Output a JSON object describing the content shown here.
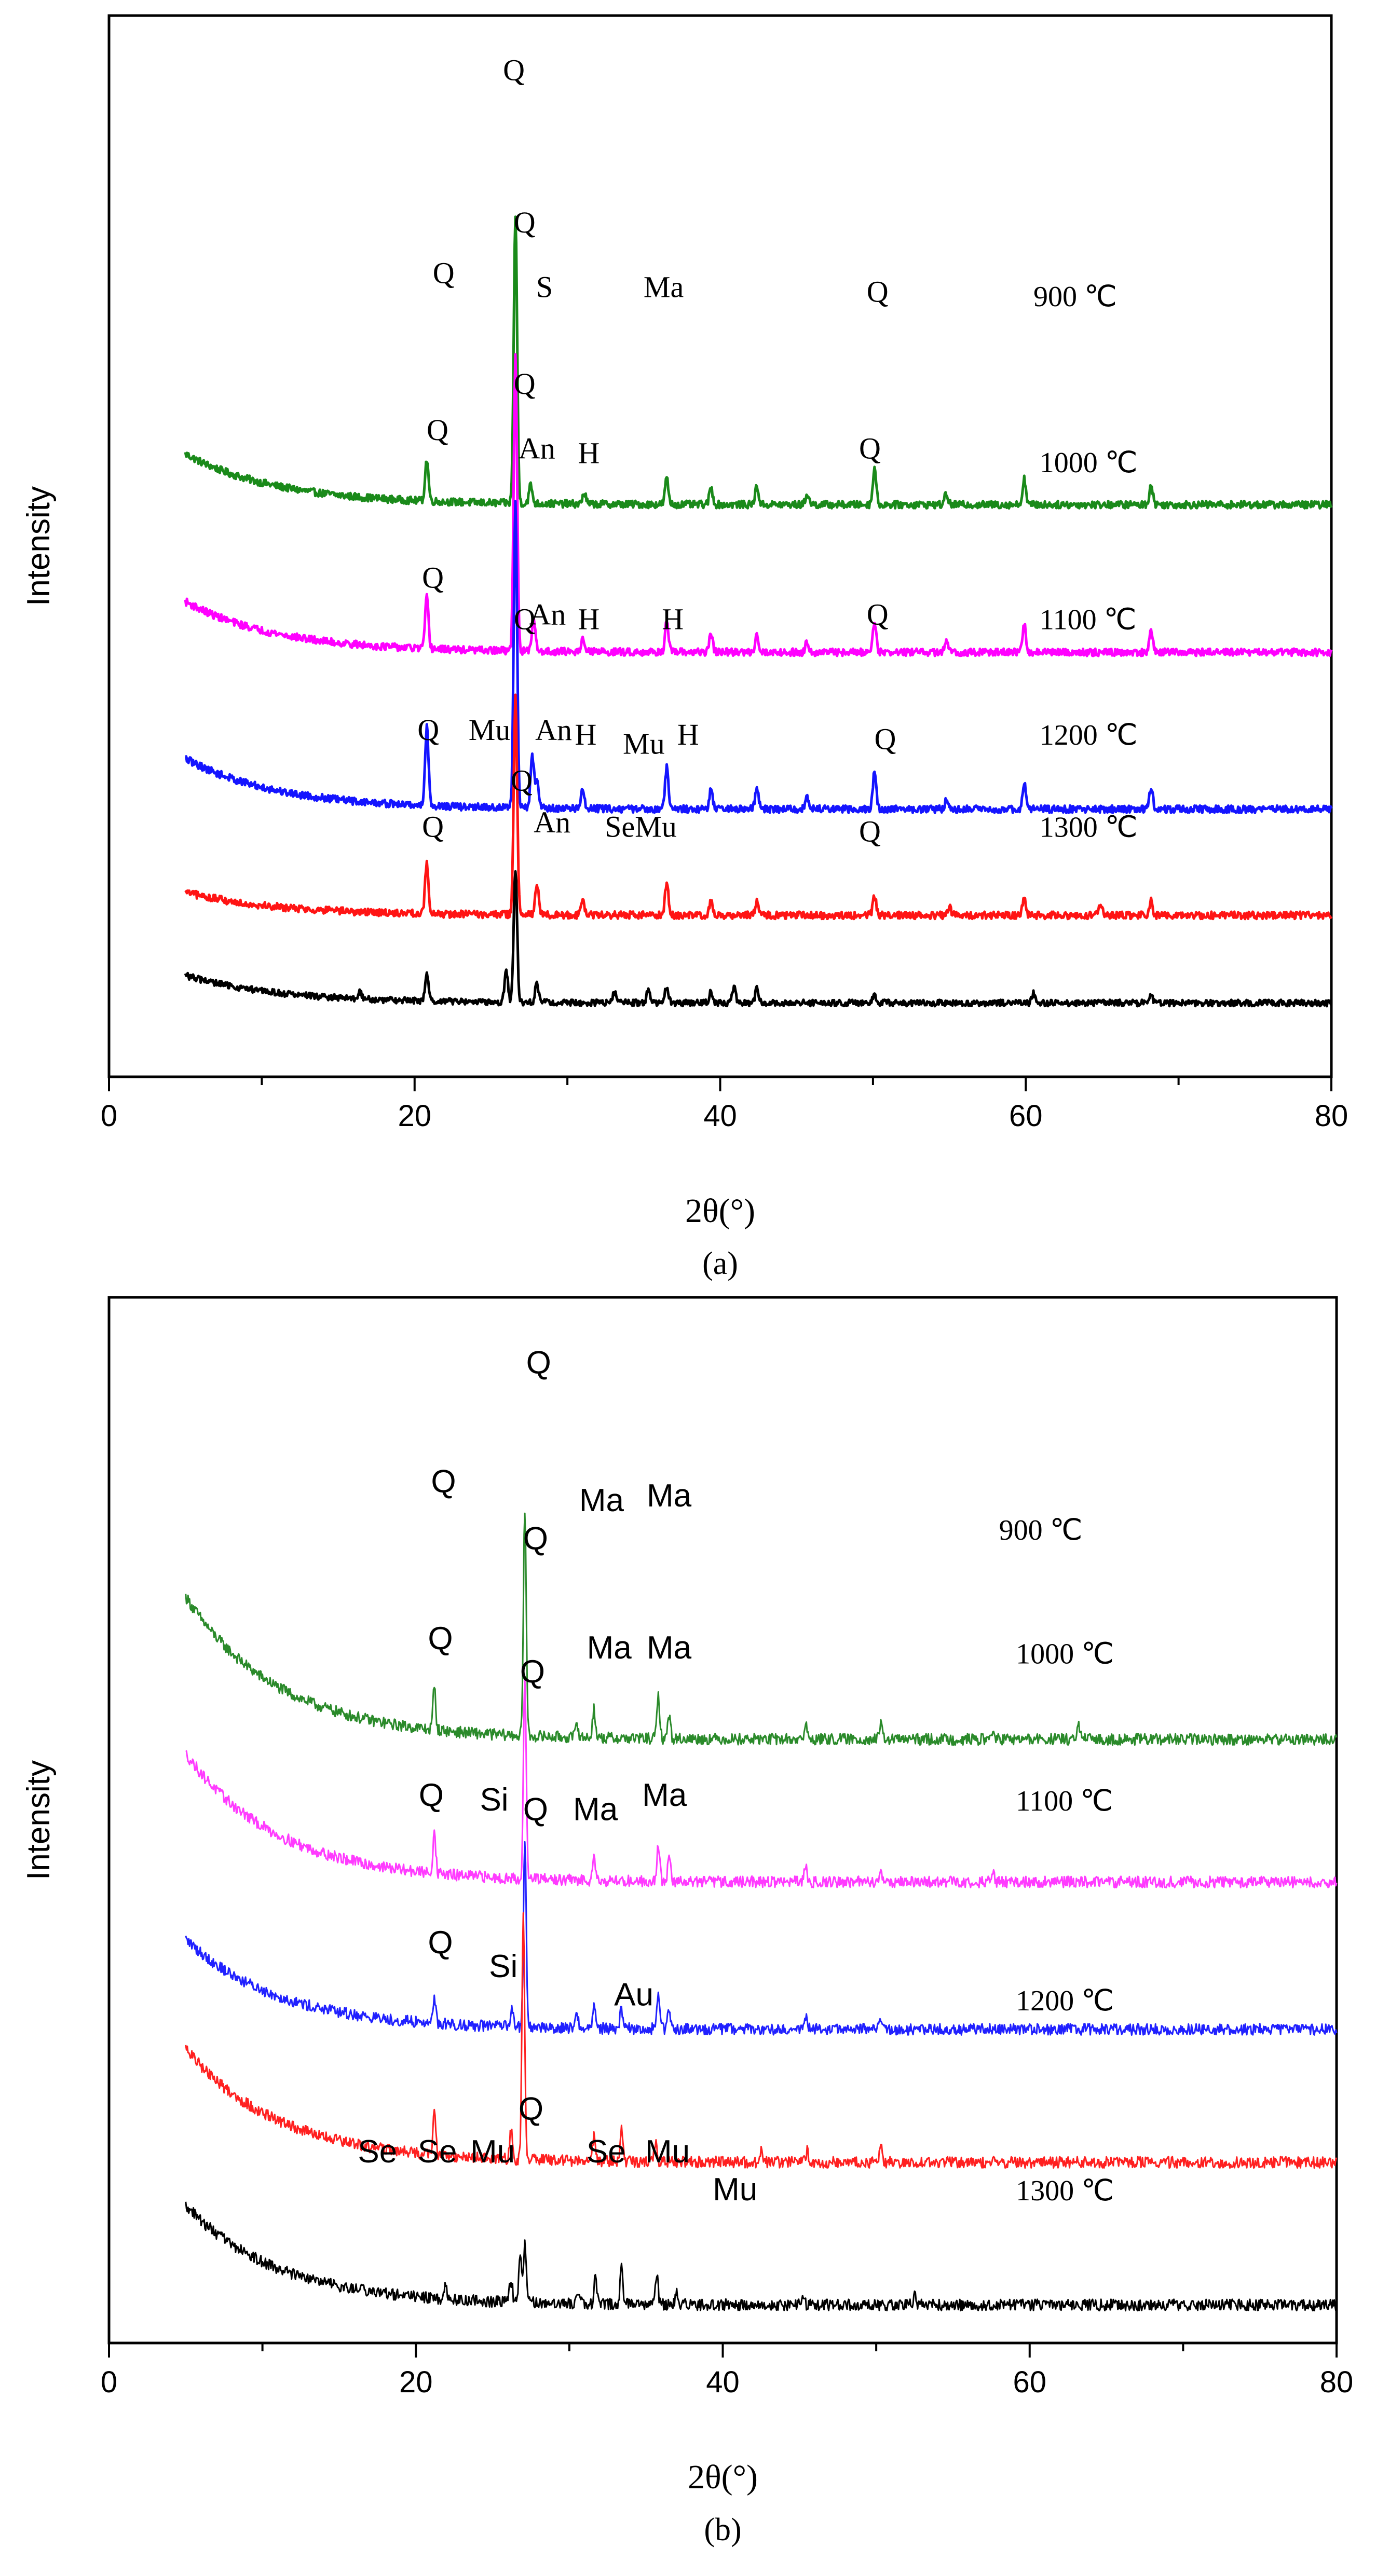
{
  "chart_data": [
    {
      "id": "a",
      "type": "line",
      "panel_label": "(a)",
      "xlabel": "2θ(°)",
      "ylabel": "Intensity",
      "xlim": [
        0,
        80
      ],
      "x_ticks": [
        "0",
        "20",
        "40",
        "60",
        "80"
      ],
      "series": [
        {
          "name": "900 ℃",
          "label": "900 ℃",
          "color": "#1a8a1a",
          "baseline": 6.2,
          "background": 0.55,
          "noise": 0.04,
          "peaks": [
            [
              20.8,
              0.45
            ],
            [
              26.6,
              3.1
            ],
            [
              27.6,
              0.2
            ],
            [
              31.1,
              0.12
            ],
            [
              36.5,
              0.28
            ],
            [
              39.4,
              0.18
            ],
            [
              42.4,
              0.2
            ],
            [
              45.7,
              0.12
            ],
            [
              50.1,
              0.4
            ],
            [
              54.8,
              0.12
            ],
            [
              59.9,
              0.28
            ],
            [
              68.2,
              0.22
            ]
          ],
          "labels": [
            {
              "text": "Q",
              "x": 21.9,
              "y": 8.6
            },
            {
              "text": "Q",
              "x": 26.5,
              "y": 10.8
            },
            {
              "text": "S",
              "x": 28.5,
              "y": 8.45
            },
            {
              "text": "Ma",
              "x": 36.3,
              "y": 8.45
            },
            {
              "text": "Q",
              "x": 50.3,
              "y": 8.4
            },
            {
              "text": "900 ℃",
              "x": 60.5,
              "y": 8.35
            }
          ]
        },
        {
          "name": "1000 ℃",
          "label": "1000 ℃",
          "color": "#ff00ff",
          "baseline": 4.6,
          "background": 0.55,
          "noise": 0.04,
          "peaks": [
            [
              20.8,
              0.55
            ],
            [
              26.6,
              3.2
            ],
            [
              27.8,
              0.35
            ],
            [
              31.0,
              0.15
            ],
            [
              36.5,
              0.32
            ],
            [
              39.4,
              0.2
            ],
            [
              42.4,
              0.2
            ],
            [
              45.7,
              0.12
            ],
            [
              50.1,
              0.35
            ],
            [
              54.8,
              0.12
            ],
            [
              59.9,
              0.3
            ],
            [
              68.2,
              0.22
            ]
          ],
          "labels": [
            {
              "text": "Q",
              "x": 21.5,
              "y": 6.9
            },
            {
              "text": "Q",
              "x": 27.2,
              "y": 9.15
            },
            {
              "text": "An",
              "x": 28.0,
              "y": 6.7
            },
            {
              "text": "H",
              "x": 31.4,
              "y": 6.65
            },
            {
              "text": "Q",
              "x": 49.8,
              "y": 6.7
            },
            {
              "text": "1000 ℃",
              "x": 60.9,
              "y": 6.55
            }
          ]
        },
        {
          "name": "1100 ℃",
          "label": "1100 ℃",
          "color": "#1414ff",
          "baseline": 2.9,
          "background": 0.55,
          "noise": 0.04,
          "peaks": [
            [
              20.8,
              0.85
            ],
            [
              26.6,
              3.3
            ],
            [
              27.7,
              0.55
            ],
            [
              28.0,
              0.3
            ],
            [
              31.0,
              0.2
            ],
            [
              36.5,
              0.45
            ],
            [
              39.4,
              0.22
            ],
            [
              42.4,
              0.22
            ],
            [
              45.7,
              0.12
            ],
            [
              50.1,
              0.4
            ],
            [
              54.8,
              0.1
            ],
            [
              59.9,
              0.28
            ],
            [
              68.2,
              0.22
            ]
          ],
          "labels": [
            {
              "text": "Q",
              "x": 21.2,
              "y": 5.3
            },
            {
              "text": "Q",
              "x": 27.2,
              "y": 7.4
            },
            {
              "text": "An",
              "x": 28.7,
              "y": 4.9
            },
            {
              "text": "H",
              "x": 31.4,
              "y": 4.85
            },
            {
              "text": "H",
              "x": 36.9,
              "y": 4.85
            },
            {
              "text": "Q",
              "x": 50.3,
              "y": 4.9
            },
            {
              "text": "1100 ℃",
              "x": 60.9,
              "y": 4.85
            }
          ]
        },
        {
          "name": "1200 ℃",
          "label": "1200 ℃",
          "color": "#ff1414",
          "baseline": 1.75,
          "background": 0.25,
          "noise": 0.04,
          "peaks": [
            [
              20.8,
              0.55
            ],
            [
              26.6,
              2.35
            ],
            [
              28.0,
              0.35
            ],
            [
              31.0,
              0.18
            ],
            [
              36.5,
              0.35
            ],
            [
              39.4,
              0.15
            ],
            [
              42.4,
              0.15
            ],
            [
              50.1,
              0.22
            ],
            [
              55.0,
              0.1
            ],
            [
              59.9,
              0.18
            ],
            [
              64.9,
              0.12
            ],
            [
              68.2,
              0.15
            ]
          ],
          "labels": [
            {
              "text": "Q",
              "x": 20.9,
              "y": 3.65
            },
            {
              "text": "Mu",
              "x": 24.9,
              "y": 3.65
            },
            {
              "text": "Q",
              "x": 27.2,
              "y": 4.85
            },
            {
              "text": "An",
              "x": 29.1,
              "y": 3.65
            },
            {
              "text": "H",
              "x": 31.2,
              "y": 3.6
            },
            {
              "text": "Mu",
              "x": 35.0,
              "y": 3.5
            },
            {
              "text": "H",
              "x": 37.9,
              "y": 3.6
            },
            {
              "text": "Q",
              "x": 50.8,
              "y": 3.55
            },
            {
              "text": "1200 ℃",
              "x": 60.9,
              "y": 3.6
            }
          ]
        },
        {
          "name": "1300 ℃",
          "label": "1300 ℃",
          "color": "#000000",
          "baseline": 0.8,
          "background": 0.3,
          "noise": 0.035,
          "peaks": [
            [
              16.4,
              0.08
            ],
            [
              20.8,
              0.3
            ],
            [
              26.0,
              0.35
            ],
            [
              26.6,
              1.45
            ],
            [
              28.0,
              0.2
            ],
            [
              33.1,
              0.12
            ],
            [
              35.3,
              0.15
            ],
            [
              36.5,
              0.18
            ],
            [
              39.4,
              0.12
            ],
            [
              40.9,
              0.18
            ],
            [
              42.4,
              0.15
            ],
            [
              50.1,
              0.1
            ],
            [
              60.5,
              0.1
            ],
            [
              68.2,
              0.08
            ]
          ],
          "labels": [
            {
              "text": "Q",
              "x": 21.2,
              "y": 2.6
            },
            {
              "text": "Q",
              "x": 27.0,
              "y": 3.1
            },
            {
              "text": "An",
              "x": 29.0,
              "y": 2.65
            },
            {
              "text": "SeMu",
              "x": 34.8,
              "y": 2.6
            },
            {
              "text": "Q",
              "x": 49.8,
              "y": 2.55
            },
            {
              "text": "1300 ℃",
              "x": 60.9,
              "y": 2.6
            }
          ]
        }
      ]
    },
    {
      "id": "b",
      "type": "line",
      "panel_label": "(b)",
      "xlabel": "2θ(°)",
      "ylabel": "Intensity",
      "xlim": [
        0,
        80
      ],
      "x_ticks": [
        "0",
        "20",
        "40",
        "60",
        "80"
      ],
      "series": [
        {
          "name": "900 ℃",
          "label": "900 ℃",
          "color": "#2a8a2a",
          "baseline": 6.35,
          "background": 1.5,
          "noise": 0.06,
          "peaks": [
            [
              21.2,
              0.45
            ],
            [
              27.1,
              2.4
            ],
            [
              30.5,
              0.15
            ],
            [
              31.6,
              0.3
            ],
            [
              35.8,
              0.45
            ],
            [
              36.5,
              0.25
            ],
            [
              45.4,
              0.15
            ],
            [
              50.3,
              0.15
            ],
            [
              57.6,
              0.1
            ],
            [
              63.2,
              0.15
            ]
          ],
          "labels": [
            {
              "text": "Q",
              "x": 21.8,
              "y": 8.95
            },
            {
              "text": "Q",
              "x": 28.0,
              "y": 10.2
            },
            {
              "text": "Ma",
              "x": 32.1,
              "y": 8.75
            },
            {
              "text": "Ma",
              "x": 36.5,
              "y": 8.8
            },
            {
              "text": "900 ℃",
              "x": 58.0,
              "y": 8.45
            }
          ]
        },
        {
          "name": "1000 ℃",
          "label": "1000 ℃",
          "color": "#ff3bff",
          "baseline": 4.85,
          "background": 1.35,
          "noise": 0.06,
          "peaks": [
            [
              21.2,
              0.45
            ],
            [
              27.1,
              2.1
            ],
            [
              31.6,
              0.3
            ],
            [
              35.8,
              0.4
            ],
            [
              36.5,
              0.25
            ],
            [
              45.4,
              0.15
            ],
            [
              50.3,
              0.12
            ],
            [
              57.6,
              0.08
            ]
          ],
          "labels": [
            {
              "text": "Q",
              "x": 21.6,
              "y": 7.3
            },
            {
              "text": "Q",
              "x": 27.8,
              "y": 8.35
            },
            {
              "text": "Ma",
              "x": 32.6,
              "y": 7.2
            },
            {
              "text": "Ma",
              "x": 36.5,
              "y": 7.2
            },
            {
              "text": "1000 ℃",
              "x": 59.1,
              "y": 7.15
            }
          ]
        },
        {
          "name": "1100 ℃",
          "label": "1100 ℃",
          "color": "#2020ff",
          "baseline": 3.3,
          "background": 0.95,
          "noise": 0.06,
          "peaks": [
            [
              21.2,
              0.28
            ],
            [
              26.3,
              0.2
            ],
            [
              27.1,
              1.95
            ],
            [
              30.5,
              0.15
            ],
            [
              31.6,
              0.25
            ],
            [
              33.4,
              0.2
            ],
            [
              35.8,
              0.4
            ],
            [
              36.5,
              0.2
            ],
            [
              45.4,
              0.12
            ],
            [
              50.3,
              0.12
            ]
          ],
          "labels": [
            {
              "text": "Q",
              "x": 21.0,
              "y": 5.65
            },
            {
              "text": "Si",
              "x": 25.1,
              "y": 5.6
            },
            {
              "text": "Q",
              "x": 27.6,
              "y": 6.95
            },
            {
              "text": "Ma",
              "x": 31.7,
              "y": 5.5
            },
            {
              "text": "Ma",
              "x": 36.2,
              "y": 5.65
            },
            {
              "text": "1100 ℃",
              "x": 59.1,
              "y": 5.6
            }
          ]
        },
        {
          "name": "1200 ℃",
          "label": "1200 ℃",
          "color": "#ff2020",
          "baseline": 1.9,
          "background": 1.2,
          "noise": 0.06,
          "peaks": [
            [
              21.2,
              0.45
            ],
            [
              26.2,
              0.3
            ],
            [
              27.0,
              2.55
            ],
            [
              31.6,
              0.25
            ],
            [
              33.4,
              0.35
            ],
            [
              35.6,
              0.2
            ],
            [
              42.5,
              0.12
            ],
            [
              45.5,
              0.12
            ],
            [
              50.3,
              0.15
            ]
          ],
          "labels": [
            {
              "text": "Q",
              "x": 21.6,
              "y": 4.1
            },
            {
              "text": "Si",
              "x": 25.7,
              "y": 3.85
            },
            {
              "text": "Q",
              "x": 27.8,
              "y": 5.5
            },
            {
              "text": "Au",
              "x": 34.2,
              "y": 3.55
            },
            {
              "text": "1200 ℃",
              "x": 59.1,
              "y": 3.5
            }
          ]
        },
        {
          "name": "1300 ℃",
          "label": "1300 ℃",
          "color": "#000000",
          "baseline": 0.4,
          "background": 1.05,
          "noise": 0.06,
          "peaks": [
            [
              21.9,
              0.15
            ],
            [
              26.2,
              0.25
            ],
            [
              26.8,
              0.5
            ],
            [
              27.1,
              0.6
            ],
            [
              30.6,
              0.15
            ],
            [
              31.7,
              0.3
            ],
            [
              33.4,
              0.4
            ],
            [
              35.7,
              0.3
            ],
            [
              37.0,
              0.15
            ],
            [
              45.2,
              0.12
            ],
            [
              52.5,
              0.1
            ]
          ],
          "labels": [
            {
              "text": "Se",
              "x": 17.5,
              "y": 1.9
            },
            {
              "text": "Se",
              "x": 21.4,
              "y": 1.9
            },
            {
              "text": "Mu",
              "x": 25.0,
              "y": 1.9
            },
            {
              "text": "Q",
              "x": 27.5,
              "y": 2.35
            },
            {
              "text": "Se",
              "x": 32.4,
              "y": 1.9
            },
            {
              "text": "Mu",
              "x": 36.4,
              "y": 1.9
            },
            {
              "text": "Mu",
              "x": 40.8,
              "y": 1.5
            },
            {
              "text": "1300 ℃",
              "x": 59.1,
              "y": 1.5
            }
          ]
        }
      ]
    }
  ]
}
